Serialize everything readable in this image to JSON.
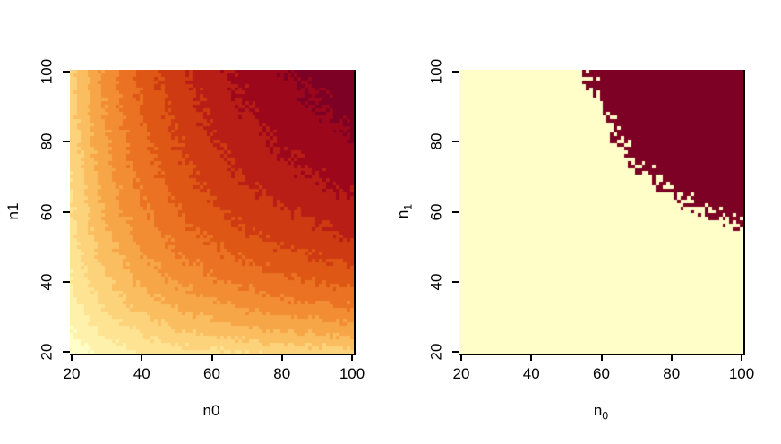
{
  "page": {
    "background": "#ffffff"
  },
  "chart_data": [
    {
      "type": "heatmap",
      "role": "power-surface",
      "xlabel": "n0",
      "ylabel": "n1",
      "x_ticks": [
        20,
        40,
        60,
        80,
        100
      ],
      "y_ticks": [
        20,
        40,
        60,
        80,
        100
      ],
      "x_range": [
        20,
        100
      ],
      "y_range": [
        20,
        100
      ],
      "grid_step": 1,
      "grid_size": 81,
      "legend": "none",
      "palette": [
        "#FFFEC8",
        "#FEF1AC",
        "#FDE392",
        "#FCD27B",
        "#FABD5F",
        "#F7A647",
        "#F28D33",
        "#EA7222",
        "#DE5715",
        "#CE3A11",
        "#B81E16",
        "#9C071C",
        "#7D0025"
      ],
      "value_model": {
        "formula": "value = Phi(effect*sqrt(x*y/(x+y)) - z_alpha) + noise(x,y)",
        "effect": 0.4667,
        "z_alpha": 1.96,
        "noise_amplitude": 0.012,
        "value_min": 0.302,
        "value_max": 0.93
      }
    },
    {
      "type": "heatmap",
      "role": "threshold-region",
      "xlabel_main": "n",
      "xlabel_sub": "0",
      "ylabel_main": "n",
      "ylabel_sub": "1",
      "x_ticks": [
        20,
        40,
        60,
        80,
        100
      ],
      "y_ticks": [
        20,
        40,
        60,
        80,
        100
      ],
      "x_range": [
        20,
        100
      ],
      "y_range": [
        20,
        100
      ],
      "grid_step": 1,
      "grid_size": 81,
      "legend": "none",
      "threshold": 0.8,
      "color_below": "#FFFEC8",
      "color_above": "#7D0025",
      "value_model": {
        "formula": "value = Phi(effect*sqrt(x*y/(x+y)) - z_alpha) + noise(x,y)",
        "effect": 0.4667,
        "z_alpha": 1.96,
        "noise_amplitude": 0.012,
        "value_min": 0.302,
        "value_max": 0.93
      }
    }
  ],
  "axis_color": "#000000"
}
